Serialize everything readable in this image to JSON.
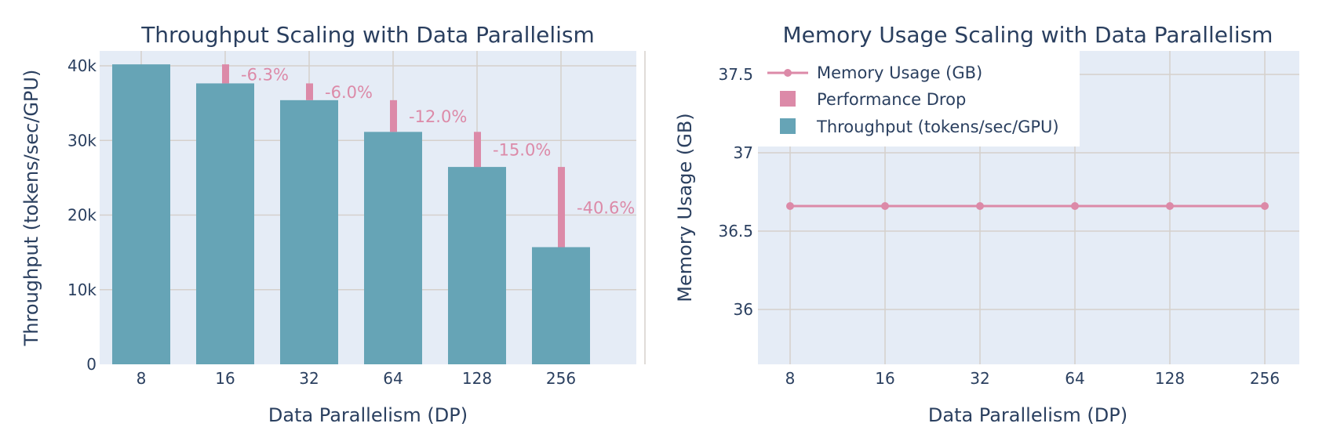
{
  "colors": {
    "plot_bg": "#e5ecf6",
    "grid": "#d5d0cc",
    "text": "#2a3f5f",
    "throughput": "#66a4b6",
    "drop": "#dc8aa8",
    "memory": "#dc8aa8"
  },
  "chart_data": [
    {
      "type": "bar",
      "title": "Throughput Scaling with Data Parallelism",
      "xlabel": "Data Parallelism (DP)",
      "ylabel": "Throughput (tokens/sec/GPU)",
      "categories": [
        "8",
        "16",
        "32",
        "64",
        "128",
        "256"
      ],
      "ylim": [
        0,
        42000
      ],
      "yticks": [
        0,
        10000,
        20000,
        30000,
        40000
      ],
      "ytick_labels": [
        "0",
        "10k",
        "20k",
        "30k",
        "40k"
      ],
      "series": [
        {
          "name": "Throughput (tokens/sec/GPU)",
          "values": [
            40200,
            37650,
            35400,
            31150,
            26450,
            15700
          ]
        },
        {
          "name": "Performance Drop",
          "from": [
            null,
            40200,
            37650,
            35400,
            31150,
            26450
          ],
          "to": [
            null,
            37650,
            35400,
            31150,
            26450,
            15700
          ]
        }
      ],
      "annotations": [
        "",
        "-6.3%",
        "-6.0%",
        "-12.0%",
        "-15.0%",
        "-40.6%"
      ]
    },
    {
      "type": "line",
      "title": "Memory Usage Scaling with Data Parallelism",
      "xlabel": "Data Parallelism (DP)",
      "ylabel": "Memory Usage (GB)",
      "categories": [
        "8",
        "16",
        "32",
        "64",
        "128",
        "256"
      ],
      "ylim": [
        35.65,
        37.65
      ],
      "yticks": [
        36,
        36.5,
        37,
        37.5
      ],
      "ytick_labels": [
        "36",
        "36.5",
        "37",
        "37.5"
      ],
      "series": [
        {
          "name": "Memory Usage (GB)",
          "values": [
            36.66,
            36.66,
            36.66,
            36.66,
            36.66,
            36.66
          ]
        }
      ],
      "legend": {
        "position": "top-left",
        "entries": [
          "Memory Usage (GB)",
          "Performance Drop",
          "Throughput (tokens/sec/GPU)"
        ]
      }
    }
  ]
}
